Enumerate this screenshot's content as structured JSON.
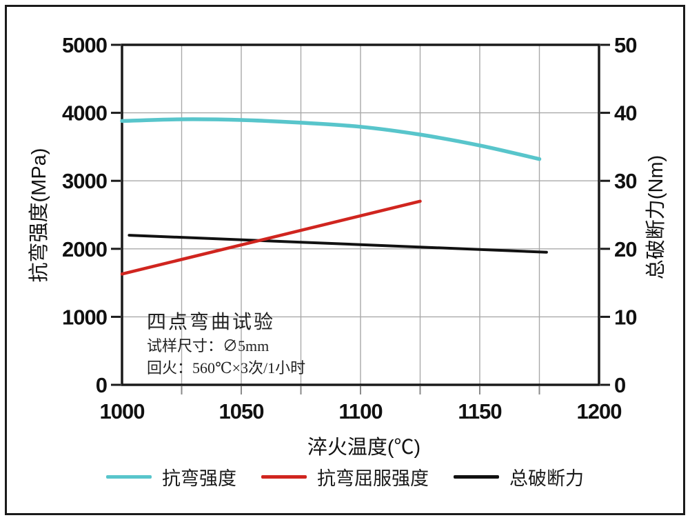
{
  "figure": {
    "background": "#ffffff",
    "border_color": "#1a1a1a"
  },
  "chart_data": {
    "type": "line",
    "title": "",
    "xlabel": "淬火温度(℃)",
    "ylabel_left": "抗弯强度(MPa)",
    "ylabel_right": "总破断力(Nm)",
    "grid": true,
    "grid_color": "#a9a9a9",
    "axis_color": "#1a1a1a",
    "minor_tick_color": "#8a8a8a",
    "legend_position": "bottom",
    "x_axis": {
      "min": 1000,
      "max": 1200,
      "tick_step": 50,
      "minor_grid_step": 25,
      "ticks": [
        1000,
        1050,
        1100,
        1150,
        1200
      ]
    },
    "y_left": {
      "min": 0,
      "max": 5000,
      "tick_step": 1000,
      "ticks": [
        0,
        1000,
        2000,
        3000,
        4000,
        5000
      ]
    },
    "y_right": {
      "min": 0,
      "max": 50,
      "tick_step": 10,
      "ticks": [
        0,
        10,
        20,
        30,
        40,
        50
      ]
    },
    "series": [
      {
        "name": "抗弯强度",
        "axis": "left",
        "unit": "MPa",
        "color": "#58c5cb",
        "width": 5.5,
        "smooth": true,
        "x": [
          1000,
          1025,
          1050,
          1075,
          1100,
          1125,
          1150,
          1175
        ],
        "y": [
          3880,
          3905,
          3895,
          3855,
          3795,
          3680,
          3520,
          3320
        ]
      },
      {
        "name": "抗弯屈服强度",
        "axis": "left",
        "unit": "MPa",
        "color": "#d0251f",
        "width": 4.5,
        "smooth": false,
        "x": [
          1000,
          1125
        ],
        "y": [
          1630,
          2700
        ]
      },
      {
        "name": "总破断力",
        "axis": "right",
        "unit": "Nm",
        "color": "#111111",
        "width": 4,
        "smooth": false,
        "x": [
          1003,
          1178
        ],
        "y": [
          22.0,
          19.5
        ]
      }
    ],
    "annotation": {
      "line1": "四点弯曲试验",
      "line2": "试样尺寸：∅5mm",
      "line3": "回火：560℃×3次/1小时"
    }
  }
}
